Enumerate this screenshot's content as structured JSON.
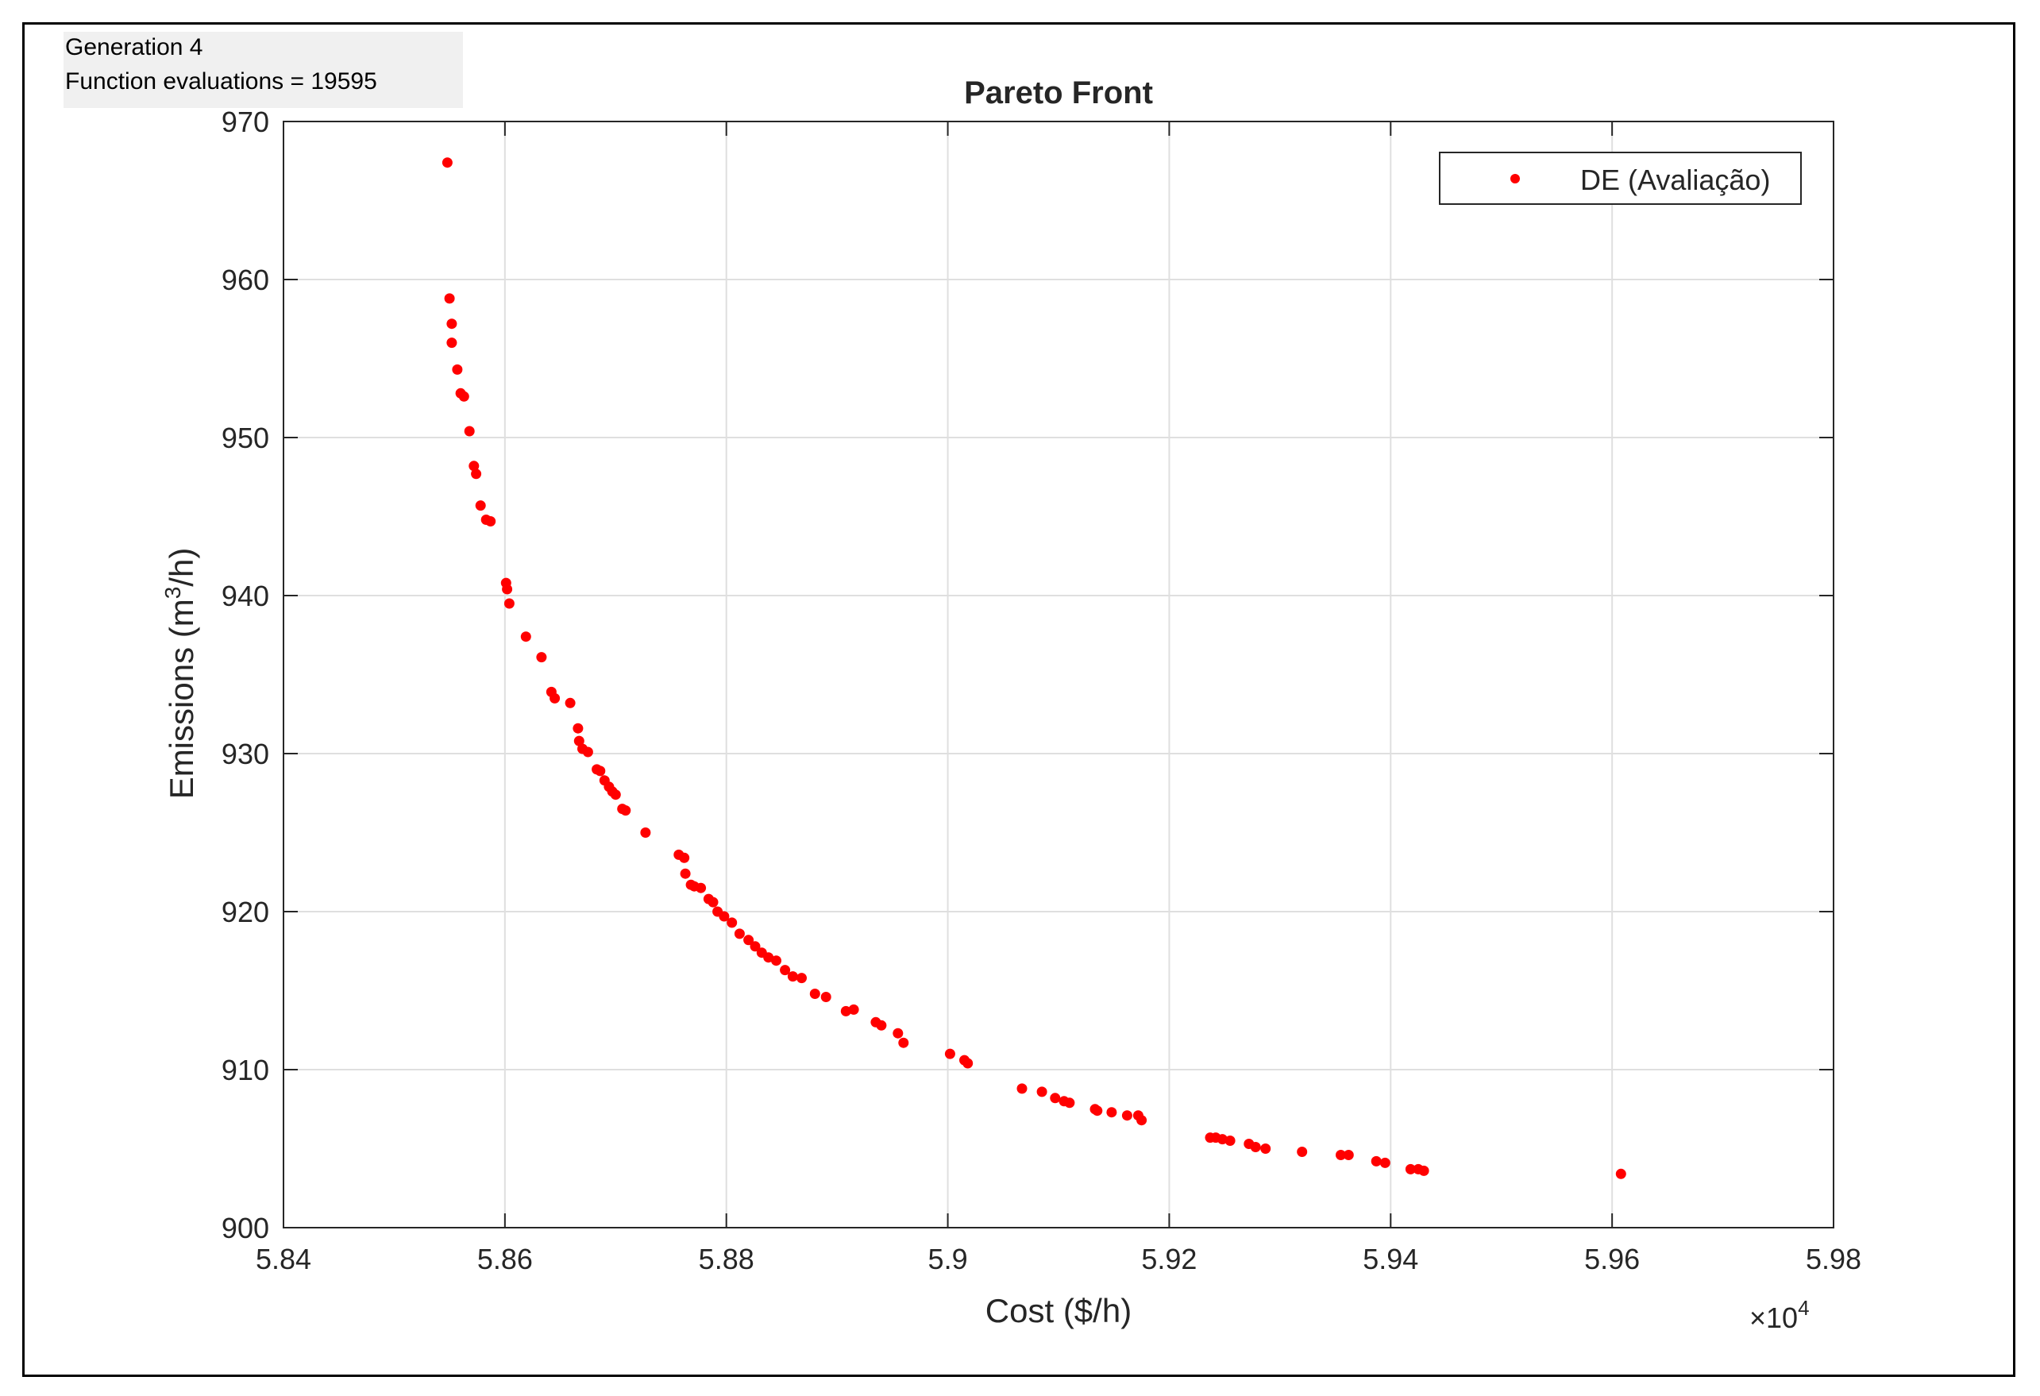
{
  "status": {
    "generation": "Generation 4",
    "evaluations": "Function evaluations = 19595"
  },
  "chart_data": {
    "type": "scatter",
    "title": "Pareto Front",
    "xlabel": "Cost ($/h)",
    "ylabel_main": "Emissions (m",
    "ylabel_sup": "3",
    "ylabel_end": "/h)",
    "x_exponent_prefix": "×10",
    "x_exponent_power": "4",
    "xlim": [
      5.84,
      5.98
    ],
    "ylim": [
      900,
      970
    ],
    "xticks": [
      5.84,
      5.86,
      5.88,
      5.9,
      5.92,
      5.94,
      5.96,
      5.98
    ],
    "xtick_labels": [
      "5.84",
      "5.86",
      "5.88",
      "5.9",
      "5.92",
      "5.94",
      "5.96",
      "5.98"
    ],
    "yticks": [
      900,
      910,
      920,
      930,
      940,
      950,
      960,
      970
    ],
    "ytick_labels": [
      "900",
      "910",
      "920",
      "930",
      "940",
      "950",
      "960",
      "970"
    ],
    "grid": true,
    "legend_position": "top-right",
    "marker_color": "#ff0000",
    "series": [
      {
        "name": "DE (Avaliação)",
        "points": [
          [
            5.8548,
            967.4
          ],
          [
            5.855,
            958.8
          ],
          [
            5.8552,
            957.2
          ],
          [
            5.8552,
            956.0
          ],
          [
            5.8557,
            954.3
          ],
          [
            5.856,
            952.8
          ],
          [
            5.8563,
            952.6
          ],
          [
            5.8568,
            950.4
          ],
          [
            5.8572,
            948.2
          ],
          [
            5.8574,
            947.7
          ],
          [
            5.8578,
            945.7
          ],
          [
            5.8583,
            944.8
          ],
          [
            5.8587,
            944.7
          ],
          [
            5.8601,
            940.8
          ],
          [
            5.8602,
            940.4
          ],
          [
            5.8604,
            939.5
          ],
          [
            5.8619,
            937.4
          ],
          [
            5.8633,
            936.1
          ],
          [
            5.8642,
            933.9
          ],
          [
            5.8645,
            933.5
          ],
          [
            5.8659,
            933.2
          ],
          [
            5.8666,
            931.6
          ],
          [
            5.8667,
            930.8
          ],
          [
            5.867,
            930.3
          ],
          [
            5.8675,
            930.1
          ],
          [
            5.8683,
            929.0
          ],
          [
            5.8686,
            928.9
          ],
          [
            5.869,
            928.3
          ],
          [
            5.8694,
            927.9
          ],
          [
            5.8697,
            927.6
          ],
          [
            5.87,
            927.4
          ],
          [
            5.8706,
            926.5
          ],
          [
            5.8709,
            926.4
          ],
          [
            5.8727,
            925.0
          ],
          [
            5.8757,
            923.6
          ],
          [
            5.8762,
            923.4
          ],
          [
            5.8763,
            922.4
          ],
          [
            5.8768,
            921.7
          ],
          [
            5.8771,
            921.6
          ],
          [
            5.8777,
            921.5
          ],
          [
            5.8784,
            920.8
          ],
          [
            5.8788,
            920.6
          ],
          [
            5.8792,
            920.0
          ],
          [
            5.8798,
            919.7
          ],
          [
            5.8805,
            919.3
          ],
          [
            5.8812,
            918.6
          ],
          [
            5.882,
            918.2
          ],
          [
            5.8826,
            917.8
          ],
          [
            5.8832,
            917.4
          ],
          [
            5.8838,
            917.1
          ],
          [
            5.8845,
            916.9
          ],
          [
            5.8853,
            916.3
          ],
          [
            5.886,
            915.9
          ],
          [
            5.8868,
            915.8
          ],
          [
            5.888,
            914.8
          ],
          [
            5.889,
            914.6
          ],
          [
            5.8908,
            913.7
          ],
          [
            5.8915,
            913.8
          ],
          [
            5.8935,
            913.0
          ],
          [
            5.894,
            912.8
          ],
          [
            5.8955,
            912.3
          ],
          [
            5.896,
            911.7
          ],
          [
            5.9002,
            911.0
          ],
          [
            5.9015,
            910.6
          ],
          [
            5.9018,
            910.4
          ],
          [
            5.9067,
            908.8
          ],
          [
            5.9085,
            908.6
          ],
          [
            5.9097,
            908.2
          ],
          [
            5.9105,
            908.0
          ],
          [
            5.911,
            907.9
          ],
          [
            5.9133,
            907.5
          ],
          [
            5.9135,
            907.4
          ],
          [
            5.9148,
            907.3
          ],
          [
            5.9162,
            907.1
          ],
          [
            5.9172,
            907.1
          ],
          [
            5.9175,
            906.8
          ],
          [
            5.9237,
            905.7
          ],
          [
            5.9242,
            905.7
          ],
          [
            5.9248,
            905.6
          ],
          [
            5.9255,
            905.5
          ],
          [
            5.9272,
            905.3
          ],
          [
            5.9278,
            905.1
          ],
          [
            5.9287,
            905.0
          ],
          [
            5.932,
            904.8
          ],
          [
            5.9355,
            904.6
          ],
          [
            5.9362,
            904.6
          ],
          [
            5.9387,
            904.2
          ],
          [
            5.9395,
            904.1
          ],
          [
            5.9418,
            903.7
          ],
          [
            5.9425,
            903.7
          ],
          [
            5.943,
            903.6
          ],
          [
            5.9608,
            903.4
          ]
        ]
      }
    ]
  }
}
